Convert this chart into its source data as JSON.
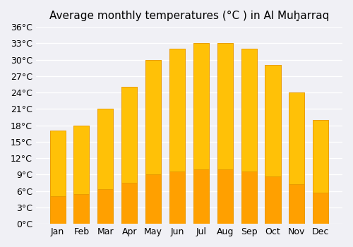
{
  "title": "Average monthly temperatures (°C ) in Al Muḩ̣arraq",
  "months": [
    "Jan",
    "Feb",
    "Mar",
    "Apr",
    "May",
    "Jun",
    "Jul",
    "Aug",
    "Sep",
    "Oct",
    "Nov",
    "Dec"
  ],
  "values": [
    17,
    18,
    21,
    25,
    30,
    32,
    33,
    33,
    32,
    29,
    24,
    19
  ],
  "ylim": [
    0,
    36
  ],
  "yticks": [
    0,
    3,
    6,
    9,
    12,
    15,
    18,
    21,
    24,
    27,
    30,
    33,
    36
  ],
  "ytick_labels": [
    "0°C",
    "3°C",
    "6°C",
    "9°C",
    "12°C",
    "15°C",
    "18°C",
    "21°C",
    "24°C",
    "27°C",
    "30°C",
    "33°C",
    "36°C"
  ],
  "bar_color_top": "#FFC107",
  "bar_color_bottom": "#FFA000",
  "background_color": "#f0f0f5",
  "grid_color": "#ffffff",
  "title_fontsize": 11,
  "tick_fontsize": 9
}
